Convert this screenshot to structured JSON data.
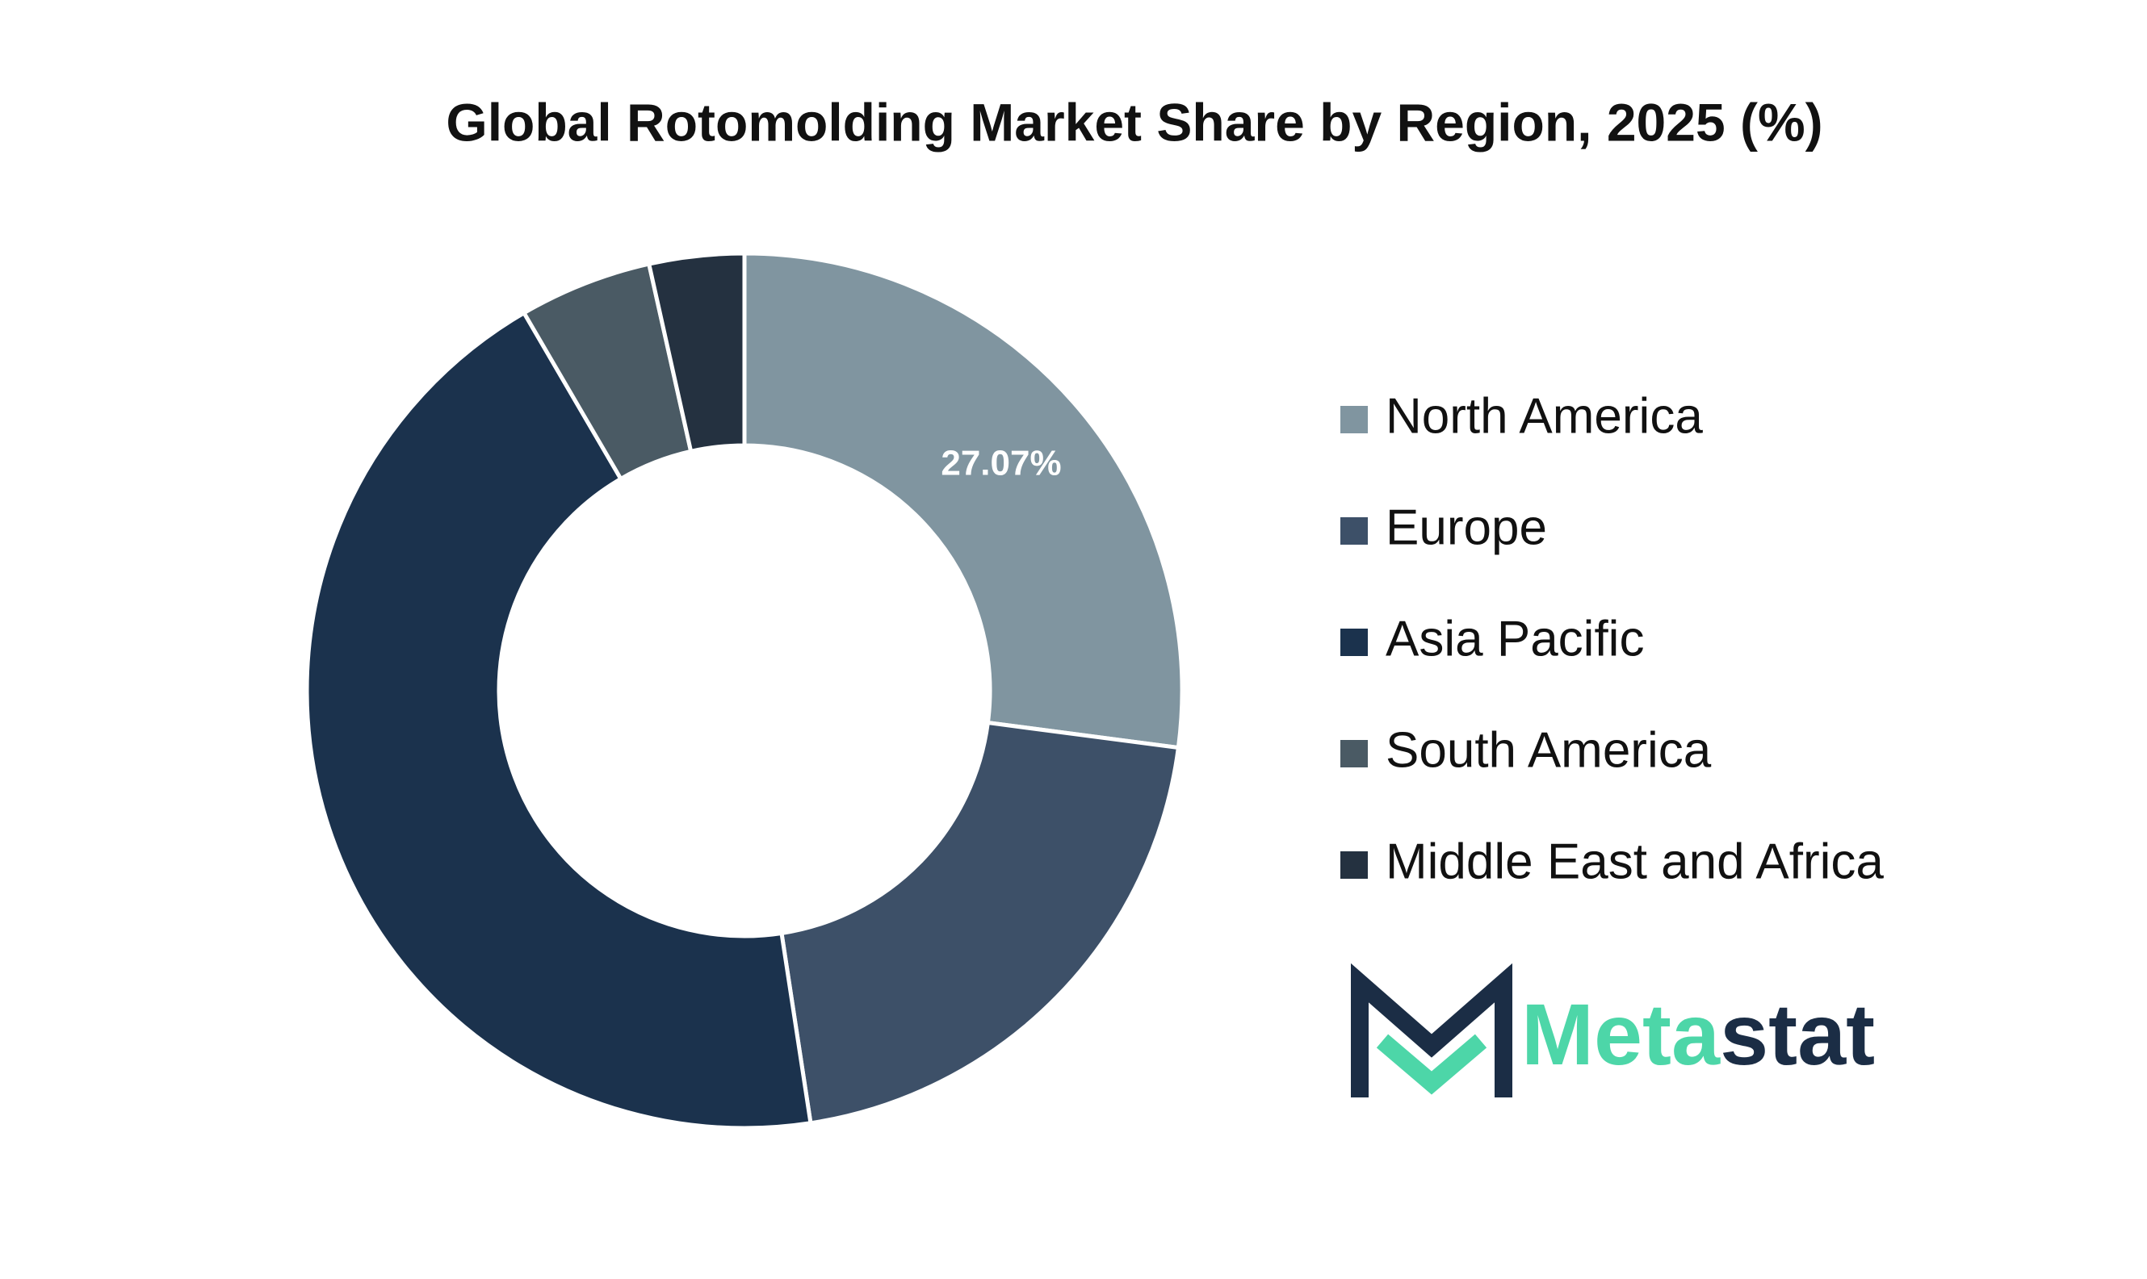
{
  "chart_data": {
    "type": "donut",
    "title": "Global Rotomolding Market Share by Region, 2025 (%)",
    "categories": [
      "North America",
      "Europe",
      "Asia Pacific",
      "South America",
      "Middle East and Africa"
    ],
    "values": [
      27.07,
      20.5,
      44.0,
      4.9,
      3.5
    ],
    "value_labels": [
      "27.07%",
      null,
      null,
      null,
      null
    ],
    "colors": [
      "#8095a0",
      "#3d5068",
      "#1b324d",
      "#4a5a64",
      "#243140"
    ],
    "legend": "right"
  },
  "logo": {
    "part_1": "Meta",
    "part_2": "stat"
  }
}
